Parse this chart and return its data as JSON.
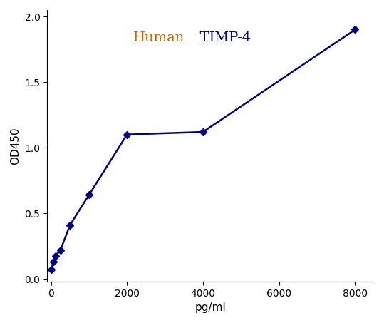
{
  "x": [
    0,
    62.5,
    125,
    250,
    500,
    1000,
    2000,
    4000,
    8000
  ],
  "y": [
    0.07,
    0.13,
    0.175,
    0.22,
    0.41,
    0.64,
    1.1,
    1.12,
    1.9
  ],
  "title_human": "Human",
  "title_timp": "  TIMP-4",
  "title_human_color": "#cc6600",
  "title_timp_color": "#00008B",
  "title_fontsize": 14,
  "line_color": "#00008B",
  "marker_color": "#00008B",
  "xlabel": "pg/ml",
  "ylabel": "OD450",
  "xlim": [
    -100,
    8500
  ],
  "ylim": [
    -0.02,
    2.05
  ],
  "xticks": [
    0,
    2000,
    4000,
    6000,
    8000
  ],
  "yticks": [
    0,
    0.5,
    1.0,
    1.5,
    2.0
  ],
  "marker": "D",
  "marker_size": 5,
  "line_width": 1.8,
  "background_color": "#ffffff"
}
